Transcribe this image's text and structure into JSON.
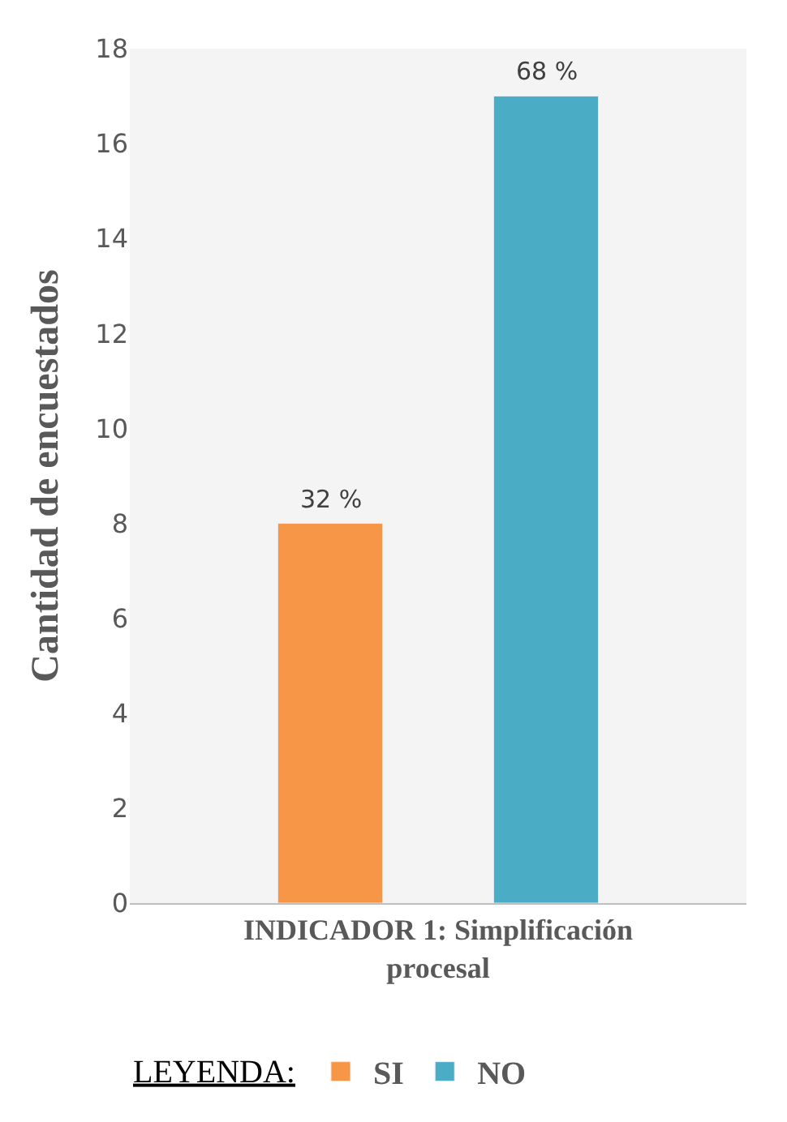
{
  "chart_data": {
    "type": "bar",
    "categories": [
      "INDICADOR 1: Simplificación procesal"
    ],
    "ylabel": "Cantidad de encuestados",
    "legend_title": "LEYENDA:",
    "ylim": [
      0,
      18
    ],
    "yticks": [
      0,
      2,
      4,
      6,
      8,
      10,
      12,
      14,
      16,
      18
    ],
    "legend": "bottom",
    "grid": false,
    "series": [
      {
        "name": "SI",
        "color": "#f79646",
        "values": [
          8
        ]
      },
      {
        "name": "NO",
        "color": "#4bacc6",
        "values": [
          17
        ]
      }
    ],
    "annotations": [
      "32 %",
      "68 %"
    ]
  }
}
